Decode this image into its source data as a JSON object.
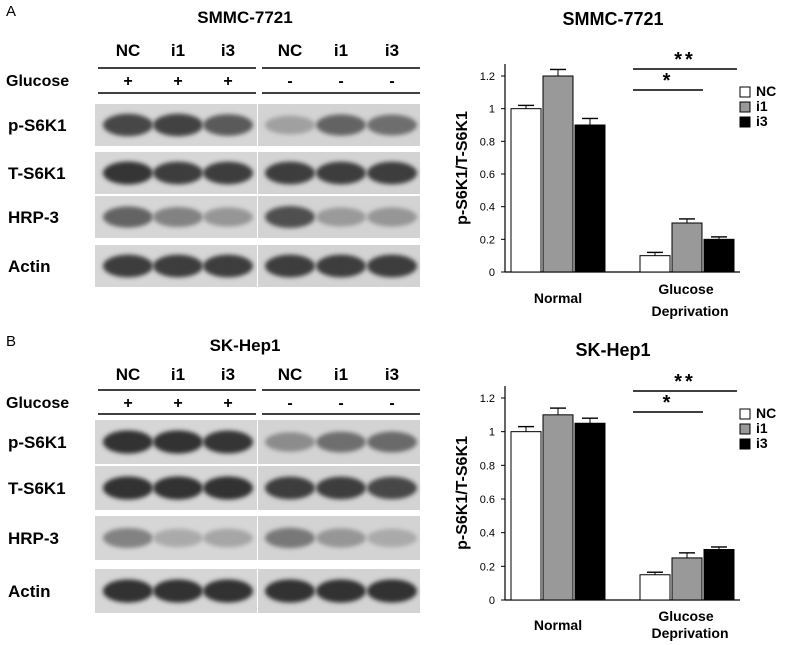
{
  "panels": [
    {
      "letter": "A",
      "blot": {
        "title": "SMMC-7721",
        "lanes": [
          "NC",
          "i1",
          "i3",
          "NC",
          "i1",
          "i3"
        ],
        "glucose_label": "Glucose",
        "glucose_signs": [
          "+",
          "+",
          "+",
          "-",
          "-",
          "-"
        ],
        "bands": [
          {
            "label": "p-S6K1",
            "intensity": [
              0.8,
              0.82,
              0.7,
              0.35,
              0.65,
              0.6
            ]
          },
          {
            "label": "T-S6K1",
            "intensity": [
              0.88,
              0.85,
              0.85,
              0.85,
              0.85,
              0.85
            ]
          },
          {
            "label": "HRP-3",
            "intensity": [
              0.65,
              0.5,
              0.4,
              0.75,
              0.38,
              0.4
            ]
          },
          {
            "label": "Actin",
            "intensity": [
              0.85,
              0.85,
              0.85,
              0.85,
              0.85,
              0.85
            ]
          }
        ]
      },
      "chart_data": {
        "type": "bar",
        "title": "SMMC-7721",
        "ylabel": "p-S6K1/T-S6K1",
        "ylim": [
          0,
          1.2
        ],
        "yticks": [
          0,
          0.2,
          0.4,
          0.6,
          0.8,
          1,
          1.2
        ],
        "categories": [
          "Normal",
          "Glucose Deprivation"
        ],
        "series": [
          {
            "name": "NC",
            "color": "#ffffff",
            "values": [
              1.0,
              0.1
            ],
            "errors": [
              0.02,
              0.02
            ]
          },
          {
            "name": "i1",
            "color": "#999999",
            "values": [
              1.2,
              0.3
            ],
            "errors": [
              0.04,
              0.025
            ]
          },
          {
            "name": "i3",
            "color": "#000000",
            "values": [
              0.9,
              0.2
            ],
            "errors": [
              0.04,
              0.015
            ]
          }
        ],
        "significance": [
          {
            "label": "**",
            "from": "NC",
            "to": "i3"
          },
          {
            "label": "*",
            "from": "NC",
            "to": "i1"
          }
        ],
        "legend_position": "right"
      }
    },
    {
      "letter": "B",
      "blot": {
        "title": "SK-Hep1",
        "lanes": [
          "NC",
          "i1",
          "i3",
          "NC",
          "i1",
          "i3"
        ],
        "glucose_label": "Glucose",
        "glucose_signs": [
          "+",
          "+",
          "+",
          "-",
          "-",
          "-"
        ],
        "bands": [
          {
            "label": "p-S6K1",
            "intensity": [
              0.9,
              0.9,
              0.88,
              0.45,
              0.6,
              0.62
            ]
          },
          {
            "label": "T-S6K1",
            "intensity": [
              0.9,
              0.9,
              0.9,
              0.85,
              0.85,
              0.8
            ]
          },
          {
            "label": "HRP-3",
            "intensity": [
              0.5,
              0.3,
              0.32,
              0.55,
              0.4,
              0.3
            ]
          },
          {
            "label": "Actin",
            "intensity": [
              0.9,
              0.9,
              0.9,
              0.9,
              0.9,
              0.9
            ]
          }
        ]
      },
      "chart_data": {
        "type": "bar",
        "title": "SK-Hep1",
        "ylabel": "p-S6K1/T-S6K1",
        "ylim": [
          0,
          1.2
        ],
        "yticks": [
          0,
          0.2,
          0.4,
          0.6,
          0.8,
          1,
          1.2
        ],
        "categories": [
          "Normal",
          "Glucose Deprivation"
        ],
        "series": [
          {
            "name": "NC",
            "color": "#ffffff",
            "values": [
              1.0,
              0.15
            ],
            "errors": [
              0.03,
              0.015
            ]
          },
          {
            "name": "i1",
            "color": "#999999",
            "values": [
              1.1,
              0.25
            ],
            "errors": [
              0.04,
              0.03
            ]
          },
          {
            "name": "i3",
            "color": "#000000",
            "values": [
              1.05,
              0.3
            ],
            "errors": [
              0.03,
              0.015
            ]
          }
        ],
        "significance": [
          {
            "label": "**",
            "from": "NC",
            "to": "i3"
          },
          {
            "label": "*",
            "from": "NC",
            "to": "i1"
          }
        ],
        "legend_position": "right"
      }
    }
  ]
}
